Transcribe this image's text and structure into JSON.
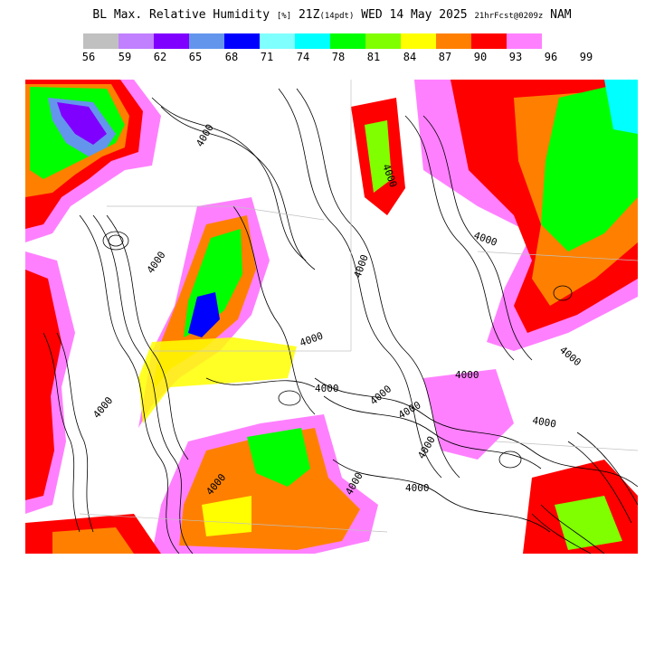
{
  "header": {
    "title_main": "BL Max. Relative Humidity",
    "title_units": "[%]",
    "title_valid": "21Z",
    "title_local": "(14pdt)",
    "title_date": "WED 14 May 2025",
    "title_fcst": "21hrFcst@0209z",
    "title_model": "NAM"
  },
  "legend": {
    "colors": [
      "#c0c0c0",
      "#c080ff",
      "#8000ff",
      "#6495ed",
      "#0000ff",
      "#80ffff",
      "#00ffff",
      "#00ff00",
      "#80ff00",
      "#ffff00",
      "#ff8000",
      "#ff0000",
      "#ff80ff"
    ],
    "ticks": [
      "56",
      "59",
      "62",
      "65",
      "68",
      "71",
      "74",
      "78",
      "81",
      "84",
      "87",
      "90",
      "93",
      "96",
      "99"
    ]
  },
  "map": {
    "contour_labels": [
      "4000",
      "4000",
      "4000",
      "4000",
      "4000",
      "4000",
      "4000",
      "4000",
      "4000",
      "4000",
      "4000",
      "4000",
      "4000",
      "4000",
      "4000",
      "4000",
      "4000"
    ]
  }
}
